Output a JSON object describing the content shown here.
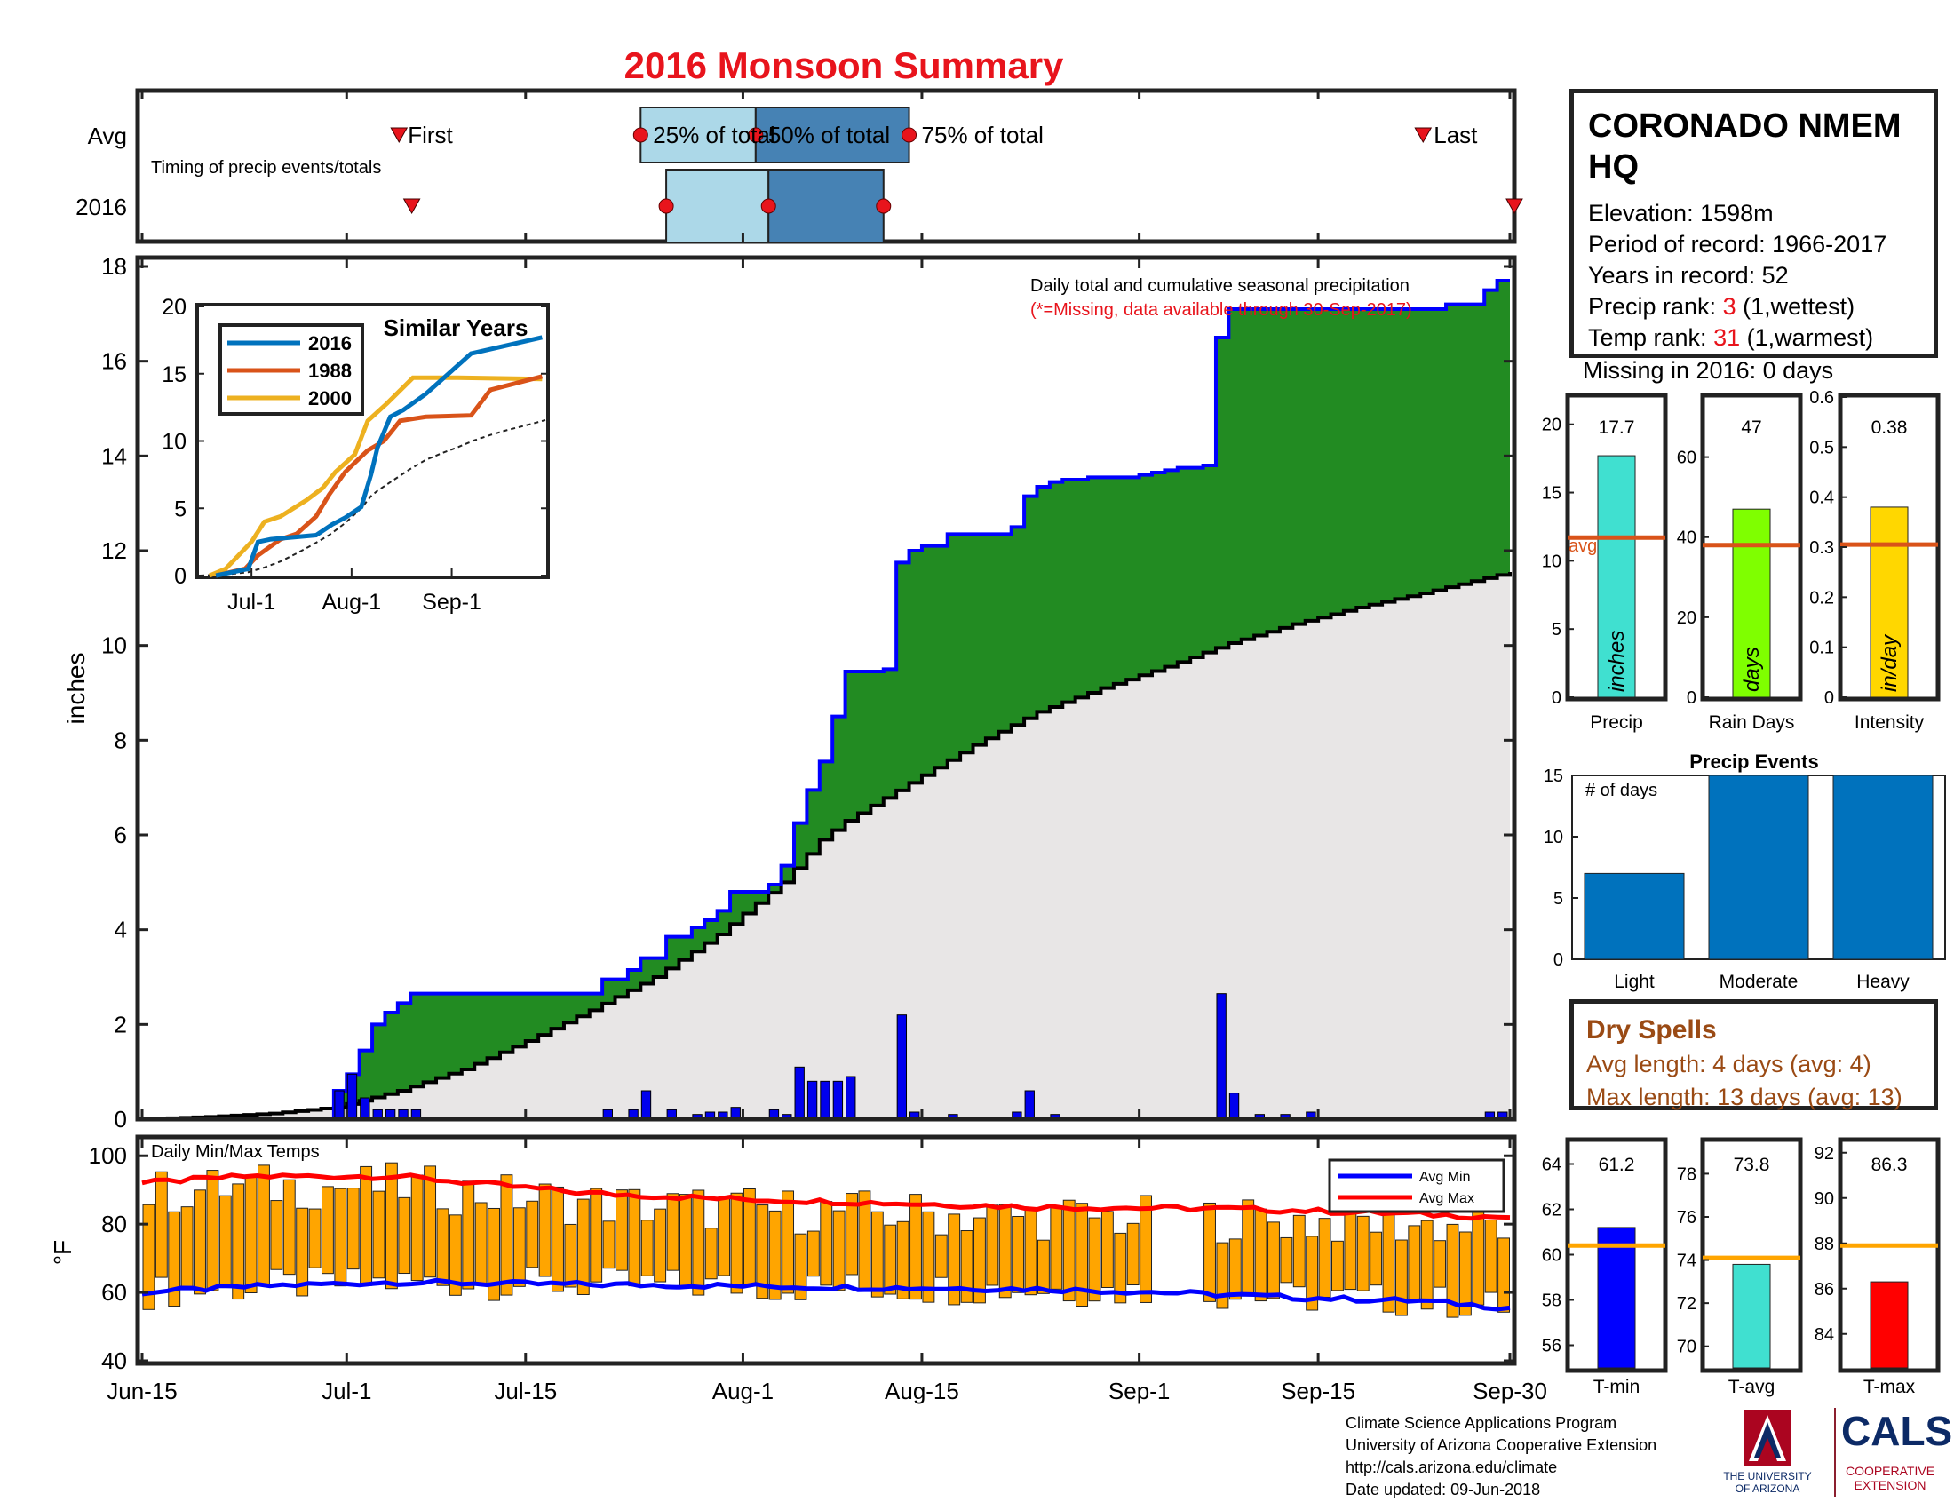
{
  "title": "2016 Monsoon Summary",
  "colors": {
    "title": "#e8141c",
    "green": "#228b22",
    "blue": "#0000ff",
    "avg_fill": "#e8e6e6",
    "box_light": "#acd8e8",
    "box_dark": "#4682b4",
    "orange": "#ffa500",
    "red": "#ff0000"
  },
  "timing": {
    "row_labels": [
      "Avg",
      "2016"
    ],
    "subtitle": "Timing of precip events/totals",
    "avg_labels": {
      "first": "First",
      "p25": "25% of total",
      "p50": "50% of total",
      "p75": "75% of total",
      "last": "Last"
    },
    "avg_days": {
      "first": 21,
      "p25": 39,
      "p50": 48,
      "p75": 60,
      "last": 100
    },
    "y2016_days": {
      "first": 22,
      "p25": 41,
      "p50": 49,
      "p75": 58,
      "last": 108
    }
  },
  "station": {
    "name": "CORONADO NMEM HQ",
    "elevation": "Elevation: 1598m",
    "period": "Period of record: 1966-2017",
    "years": "Years in record: 52",
    "precip_rank_label": "Precip rank: ",
    "precip_rank_value": "3",
    "precip_rank_suffix": " (1,wettest)",
    "temp_rank_label": "Temp rank: ",
    "temp_rank_value": "31",
    "temp_rank_suffix": " (1,warmest)",
    "missing": "Missing in 2016: 0 days"
  },
  "x_axis": {
    "tick_labels": [
      "Jun-15",
      "Jul-1",
      "Jul-15",
      "Aug-1",
      "Aug-15",
      "Sep-1",
      "Sep-15",
      "Sep-30"
    ],
    "tick_days": [
      0,
      16,
      30,
      47,
      61,
      78,
      92,
      107
    ],
    "range": [
      0,
      107
    ]
  },
  "main_chart": {
    "ylabel": "inches",
    "ylim": [
      0,
      18
    ],
    "y_ticks": [
      0,
      2,
      4,
      6,
      8,
      10,
      12,
      14,
      16,
      18
    ],
    "title_line1": "Daily total and cumulative seasonal precipitation",
    "title_line2": "(*=Missing, data available through 30-Sep-2017)"
  },
  "inset": {
    "title": "Similar Years",
    "ylim": [
      0,
      20
    ],
    "y_ticks": [
      0,
      5,
      10,
      15,
      20
    ],
    "x_tick_labels": [
      "Jul-1",
      "Aug-1",
      "Sep-1"
    ],
    "x_tick_days": [
      16,
      47,
      78
    ],
    "legend": [
      "2016",
      "1988",
      "2000"
    ],
    "series_colors": [
      "#0072bd",
      "#d95319",
      "#edb120"
    ]
  },
  "temp_chart": {
    "title": "Daily Min/Max Temps",
    "ylabel": "°F",
    "ylim": [
      40,
      105
    ],
    "y_ticks": [
      40,
      60,
      80,
      100
    ],
    "legend": [
      "Avg Min",
      "Avg Max"
    ]
  },
  "summary_bars": [
    {
      "label": "Precip",
      "value": 17.7,
      "value_text": "17.7",
      "inner": "inches",
      "avg": 11.7,
      "ylim": [
        0,
        22
      ],
      "ticks": [
        0,
        5,
        10,
        15,
        20
      ],
      "tick_labels": [
        "0",
        "5",
        "10",
        "15",
        "20"
      ],
      "color": "#40e0d0",
      "avg_text": "avg"
    },
    {
      "label": "Rain Days",
      "value": 47,
      "value_text": "47",
      "inner": "days",
      "avg": 38,
      "ylim": [
        0,
        75
      ],
      "ticks": [
        0,
        20,
        40,
        60
      ],
      "tick_labels": [
        "0",
        "20",
        "40",
        "60"
      ],
      "color": "#7fff00"
    },
    {
      "label": "Intensity",
      "value": 0.38,
      "value_text": "0.38",
      "inner": "in/day",
      "avg": 0.305,
      "ylim": [
        0,
        0.6
      ],
      "ticks": [
        0,
        0.1,
        0.2,
        0.3,
        0.4,
        0.5,
        0.6
      ],
      "tick_labels": [
        "0",
        "0.1",
        "0.2",
        "0.3",
        "0.4",
        "0.5",
        "0.6"
      ],
      "color": "#ffd700"
    }
  ],
  "events": {
    "title": "Precip Events",
    "inner": "# of days",
    "ylim": [
      0,
      15
    ],
    "ticks": [
      0,
      5,
      10,
      15
    ],
    "categories": [
      "Light",
      "Moderate",
      "Heavy"
    ],
    "values": [
      7,
      15,
      15
    ]
  },
  "dry": {
    "title": "Dry Spells",
    "avg_line": "Avg length: 4 days (avg: 4)",
    "max_line": "Max length: 13 days (avg: 13)"
  },
  "temp_bars": [
    {
      "label": "T-min",
      "value": 61.2,
      "value_text": "61.2",
      "avg": 60.4,
      "ylim": [
        55,
        65
      ],
      "ticks": [
        56,
        58,
        60,
        62,
        64
      ],
      "color": "#0000ff"
    },
    {
      "label": "T-avg",
      "value": 73.8,
      "value_text": "73.8",
      "avg": 74.1,
      "ylim": [
        69,
        79.5
      ],
      "ticks": [
        70,
        72,
        74,
        76,
        78
      ],
      "color": "#40e0d0"
    },
    {
      "label": "T-max",
      "value": 86.3,
      "value_text": "86.3",
      "avg": 87.9,
      "ylim": [
        82.5,
        92.5
      ],
      "ticks": [
        84,
        86,
        88,
        90,
        92
      ],
      "color": "#ff0000"
    }
  ],
  "footer": {
    "line1": "Climate Science Applications Program",
    "line2": "University of Arizona Cooperative Extension",
    "line3": "http://cals.arizona.edu/climate",
    "line4": " Date updated: 09-Jun-2018"
  },
  "logos": {
    "ua_letter": "A",
    "ua_line1": "THE UNIVERSITY",
    "ua_line2": "OF ARIZONA",
    "cals": "CALS",
    "cals_line1": "COOPERATIVE",
    "cals_line2": "EXTENSION"
  },
  "chart_data": [
    {
      "type": "area",
      "title": "Daily total and cumulative seasonal precipitation",
      "ylabel": "inches",
      "x_unit": "days since Jun-15",
      "cumulative_2016": [
        [
          0,
          0
        ],
        [
          15,
          0.6
        ],
        [
          16,
          0.95
        ],
        [
          17,
          1.45
        ],
        [
          18,
          2.0
        ],
        [
          19,
          2.25
        ],
        [
          20,
          2.45
        ],
        [
          21,
          2.65
        ],
        [
          36,
          2.95
        ],
        [
          38,
          3.15
        ],
        [
          39,
          3.4
        ],
        [
          41,
          3.85
        ],
        [
          43,
          4.05
        ],
        [
          44,
          4.2
        ],
        [
          45,
          4.4
        ],
        [
          46,
          4.8
        ],
        [
          49,
          4.95
        ],
        [
          50,
          5.35
        ],
        [
          51,
          6.25
        ],
        [
          52,
          6.95
        ],
        [
          53,
          7.55
        ],
        [
          54,
          8.5
        ],
        [
          55,
          9.45
        ],
        [
          58,
          9.5
        ],
        [
          59,
          11.75
        ],
        [
          60,
          12.0
        ],
        [
          61,
          12.1
        ],
        [
          63,
          12.35
        ],
        [
          68,
          12.5
        ],
        [
          69,
          13.15
        ],
        [
          70,
          13.35
        ],
        [
          71,
          13.45
        ],
        [
          72,
          13.5
        ],
        [
          73,
          13.5
        ],
        [
          74,
          13.55
        ],
        [
          77,
          13.55
        ],
        [
          78,
          13.6
        ],
        [
          79,
          13.65
        ],
        [
          80,
          13.7
        ],
        [
          81,
          13.75
        ],
        [
          82,
          13.75
        ],
        [
          83,
          13.8
        ],
        [
          84,
          16.5
        ],
        [
          85,
          17.1
        ],
        [
          101,
          17.1
        ],
        [
          102,
          17.2
        ],
        [
          105,
          17.5
        ],
        [
          106,
          17.7
        ]
      ],
      "cumulative_avg": [
        [
          0,
          0
        ],
        [
          5,
          0.05
        ],
        [
          10,
          0.12
        ],
        [
          15,
          0.25
        ],
        [
          20,
          0.6
        ],
        [
          25,
          1.05
        ],
        [
          30,
          1.65
        ],
        [
          35,
          2.3
        ],
        [
          40,
          3.0
        ],
        [
          45,
          3.9
        ],
        [
          50,
          5.0
        ],
        [
          53,
          5.9
        ],
        [
          55,
          6.3
        ],
        [
          60,
          7.1
        ],
        [
          65,
          7.9
        ],
        [
          70,
          8.6
        ],
        [
          75,
          9.1
        ],
        [
          80,
          9.55
        ],
        [
          85,
          10.05
        ],
        [
          90,
          10.45
        ],
        [
          95,
          10.8
        ],
        [
          100,
          11.1
        ],
        [
          107,
          11.55
        ]
      ],
      "daily": [
        [
          15,
          0.6
        ],
        [
          16,
          0.95
        ],
        [
          17,
          0.45
        ],
        [
          18,
          0.2
        ],
        [
          19,
          0.2
        ],
        [
          20,
          0.2
        ],
        [
          21,
          0.2
        ],
        [
          36,
          0.2
        ],
        [
          38,
          0.2
        ],
        [
          39,
          0.6
        ],
        [
          41,
          0.2
        ],
        [
          43,
          0.1
        ],
        [
          44,
          0.15
        ],
        [
          45,
          0.15
        ],
        [
          46,
          0.25
        ],
        [
          49,
          0.2
        ],
        [
          50,
          0.1
        ],
        [
          51,
          1.1
        ],
        [
          52,
          0.8
        ],
        [
          53,
          0.8
        ],
        [
          54,
          0.8
        ],
        [
          55,
          0.9
        ],
        [
          59,
          2.2
        ],
        [
          60,
          0.15
        ],
        [
          63,
          0.1
        ],
        [
          68,
          0.15
        ],
        [
          69,
          0.6
        ],
        [
          71,
          0.1
        ],
        [
          84,
          2.65
        ],
        [
          85,
          0.55
        ],
        [
          87,
          0.1
        ],
        [
          89,
          0.1
        ],
        [
          91,
          0.15
        ],
        [
          105,
          0.15
        ],
        [
          106,
          0.15
        ]
      ]
    },
    {
      "type": "line",
      "title": "Similar Years",
      "x_unit": "days since Jun-15",
      "series": [
        {
          "name": "2016",
          "points": [
            [
              5,
              0
            ],
            [
              15,
              0.5
            ],
            [
              18,
              2.5
            ],
            [
              22,
              2.7
            ],
            [
              36,
              3.0
            ],
            [
              41,
              3.8
            ],
            [
              45,
              4.3
            ],
            [
              50,
              5.1
            ],
            [
              53,
              7.5
            ],
            [
              55,
              9.5
            ],
            [
              59,
              11.8
            ],
            [
              63,
              12.3
            ],
            [
              70,
              13.5
            ],
            [
              84,
              16.5
            ],
            [
              106,
              17.7
            ]
          ]
        },
        {
          "name": "1988",
          "points": [
            [
              5,
              0
            ],
            [
              14,
              0.5
            ],
            [
              18,
              1.5
            ],
            [
              25,
              2.7
            ],
            [
              30,
              3.1
            ],
            [
              36,
              4.4
            ],
            [
              40,
              6.0
            ],
            [
              45,
              7.7
            ],
            [
              52,
              9.3
            ],
            [
              57,
              10.0
            ],
            [
              62,
              11.5
            ],
            [
              70,
              11.8
            ],
            [
              84,
              11.9
            ],
            [
              90,
              13.8
            ],
            [
              106,
              14.8
            ]
          ]
        },
        {
          "name": "2000",
          "points": [
            [
              3,
              0
            ],
            [
              8,
              0.5
            ],
            [
              12,
              1.5
            ],
            [
              16,
              2.5
            ],
            [
              20,
              4.0
            ],
            [
              25,
              4.4
            ],
            [
              33,
              5.6
            ],
            [
              38,
              6.5
            ],
            [
              42,
              7.7
            ],
            [
              48,
              9.0
            ],
            [
              52,
              11.5
            ],
            [
              58,
              12.8
            ],
            [
              66,
              14.7
            ],
            [
              80,
              14.7
            ],
            [
              106,
              14.6
            ]
          ]
        }
      ]
    },
    {
      "type": "bar",
      "title": "Daily Min/Max Temps",
      "ylabel": "°F",
      "x_unit": "days since Jun-15",
      "avg_min": [
        [
          0,
          60
        ],
        [
          10,
          62
        ],
        [
          20,
          63
        ],
        [
          30,
          62.5
        ],
        [
          45,
          62
        ],
        [
          55,
          61.5
        ],
        [
          70,
          61
        ],
        [
          80,
          60
        ],
        [
          90,
          58.5
        ],
        [
          100,
          57.5
        ],
        [
          107,
          55.5
        ]
      ],
      "avg_max": [
        [
          0,
          92
        ],
        [
          8,
          94
        ],
        [
          20,
          94
        ],
        [
          35,
          89
        ],
        [
          45,
          87.5
        ],
        [
          60,
          86
        ],
        [
          70,
          85
        ],
        [
          85,
          84.5
        ],
        [
          95,
          83.5
        ],
        [
          107,
          82
        ]
      ]
    },
    {
      "type": "bar",
      "title": "Precip Events",
      "categories": [
        "Light",
        "Moderate",
        "Heavy"
      ],
      "values": [
        7,
        15,
        15
      ],
      "ylim": [
        0,
        15
      ]
    },
    {
      "type": "bar",
      "categories": [
        "Precip",
        "Rain Days",
        "Intensity"
      ],
      "values": [
        17.7,
        47,
        0.38
      ]
    },
    {
      "type": "bar",
      "categories": [
        "T-min",
        "T-avg",
        "T-max"
      ],
      "values": [
        61.2,
        73.8,
        86.3
      ]
    }
  ]
}
